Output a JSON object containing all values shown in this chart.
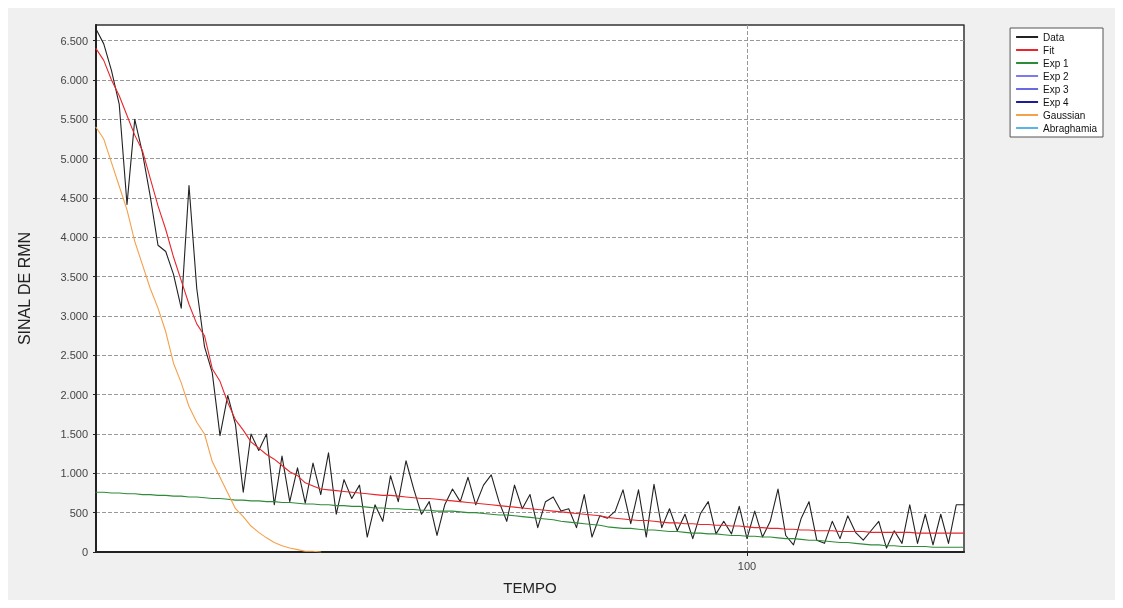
{
  "chart_data": {
    "type": "line",
    "xlabel": "TEMPO",
    "ylabel": "SINAL DE RMN",
    "categories": [
      null,
      null,
      null,
      null,
      null,
      null,
      null,
      null,
      null,
      null,
      null,
      null,
      null,
      null,
      null,
      null,
      null,
      null,
      null,
      null,
      null,
      null,
      null,
      null,
      null,
      null,
      null,
      null,
      null,
      null,
      null,
      null,
      null,
      null,
      null,
      null,
      null,
      null,
      null,
      null,
      null,
      null,
      null,
      null,
      null,
      null,
      null,
      null,
      null,
      null,
      null,
      null,
      null,
      null,
      null,
      null,
      null,
      null,
      null,
      null,
      null,
      null,
      null,
      null,
      null,
      null,
      null,
      null,
      null,
      null,
      null,
      null,
      null,
      null,
      null,
      null,
      null,
      null,
      null,
      null,
      null,
      null,
      null,
      null,
      "100",
      null,
      null,
      null,
      null,
      null,
      null,
      null,
      null,
      null,
      null,
      null,
      null,
      null,
      null,
      null,
      null,
      null,
      null,
      null,
      null,
      null,
      null,
      null,
      null,
      null,
      null,
      null,
      null
    ],
    "series": [
      {
        "name": "Data",
        "color": "#222222",
        "values": [
          6650,
          6460,
          6120,
          5690,
          4420,
          5500,
          5070,
          4520,
          3900,
          3820,
          3530,
          3100,
          4660,
          3350,
          2610,
          2280,
          1480,
          1990,
          1620,
          760,
          1500,
          1290,
          1500,
          600,
          1220,
          640,
          1070,
          620,
          1130,
          730,
          1260,
          480,
          920,
          680,
          850,
          190,
          600,
          390,
          970,
          640,
          1160,
          800,
          480,
          640,
          210,
          600,
          800,
          640,
          950,
          600,
          850,
          980,
          640,
          390,
          850,
          550,
          730,
          310,
          640,
          700,
          520,
          550,
          310,
          730,
          190,
          460,
          430,
          520,
          790,
          360,
          790,
          190,
          860,
          310,
          550,
          270,
          480,
          170,
          490,
          640,
          230,
          390,
          230,
          580,
          170,
          520,
          190,
          390,
          800,
          210,
          90,
          430,
          640,
          150,
          110,
          390,
          170,
          460,
          250,
          150,
          270,
          390,
          50,
          270,
          110,
          600,
          110,
          480,
          90,
          480,
          110,
          600,
          600
        ]
      },
      {
        "name": "Fit",
        "color": "#e8262b",
        "values": [
          6400,
          6250,
          6000,
          5800,
          5550,
          5300,
          5100,
          4750,
          4400,
          4100,
          3750,
          3450,
          3150,
          2900,
          2750,
          2330,
          2170,
          1900,
          1680,
          1550,
          1400,
          1320,
          1240,
          1180,
          1100,
          1020,
          970,
          880,
          840,
          800,
          790,
          780,
          770,
          760,
          750,
          740,
          730,
          720,
          720,
          710,
          700,
          690,
          680,
          680,
          670,
          660,
          650,
          640,
          630,
          620,
          610,
          600,
          590,
          580,
          570,
          560,
          550,
          540,
          530,
          520,
          510,
          500,
          490,
          480,
          470,
          460,
          440,
          430,
          420,
          410,
          400,
          400,
          390,
          380,
          370,
          370,
          360,
          360,
          350,
          350,
          340,
          340,
          330,
          330,
          320,
          310,
          310,
          300,
          300,
          290,
          290,
          280,
          280,
          270,
          270,
          270,
          260,
          260,
          260,
          260,
          250,
          250,
          250,
          250,
          250,
          250,
          240,
          240,
          240,
          240,
          240,
          240,
          240
        ]
      },
      {
        "name": "Exp 1",
        "color": "#2e8b3a",
        "values": [
          760,
          760,
          750,
          750,
          740,
          740,
          730,
          730,
          720,
          720,
          710,
          710,
          700,
          700,
          690,
          680,
          680,
          670,
          660,
          660,
          650,
          650,
          640,
          640,
          630,
          630,
          620,
          610,
          610,
          600,
          600,
          590,
          590,
          580,
          580,
          570,
          560,
          560,
          550,
          550,
          540,
          540,
          530,
          530,
          520,
          520,
          520,
          510,
          500,
          500,
          490,
          480,
          470,
          470,
          460,
          450,
          440,
          430,
          420,
          410,
          390,
          380,
          370,
          360,
          350,
          340,
          320,
          310,
          300,
          300,
          290,
          280,
          280,
          270,
          260,
          260,
          250,
          240,
          240,
          230,
          230,
          220,
          210,
          210,
          200,
          200,
          190,
          190,
          180,
          170,
          170,
          160,
          150,
          150,
          140,
          130,
          120,
          120,
          110,
          100,
          90,
          90,
          80,
          80,
          70,
          70,
          70,
          70,
          60,
          60,
          60,
          60,
          60
        ]
      },
      {
        "name": "Exp 2",
        "color": "#7b7bef",
        "values": [
          null,
          null,
          null,
          null,
          null,
          null,
          null,
          null,
          null,
          null,
          null,
          null,
          null,
          null,
          null,
          null,
          null,
          null,
          null,
          null,
          null,
          null,
          null,
          null,
          null,
          null,
          null,
          null,
          null,
          null,
          null,
          null,
          null,
          null,
          null,
          null,
          null,
          null,
          null,
          null,
          null,
          null,
          null,
          null,
          null,
          null,
          null,
          null,
          null,
          null,
          null,
          null,
          null,
          null,
          null,
          null,
          null,
          null,
          null,
          null,
          null,
          null,
          null,
          null,
          null,
          null,
          null,
          null,
          null,
          null,
          null,
          null,
          null,
          null,
          null,
          null,
          null,
          null,
          null,
          null,
          null,
          null,
          null,
          null,
          null,
          null,
          null,
          null,
          null,
          null,
          null,
          null,
          null,
          null,
          null,
          null,
          null,
          null,
          null,
          null,
          null,
          null,
          null,
          null,
          null,
          null,
          null,
          null,
          null,
          null,
          null,
          null,
          null
        ]
      },
      {
        "name": "Exp 3",
        "color": "#6a6ae0",
        "values": [
          null,
          null,
          null,
          null,
          null,
          null,
          null,
          null,
          null,
          null,
          null,
          null,
          null,
          null,
          null,
          null,
          null,
          null,
          null,
          null,
          null,
          null,
          null,
          null,
          null,
          null,
          null,
          null,
          null,
          null,
          null,
          null,
          null,
          null,
          null,
          null,
          null,
          null,
          null,
          null,
          null,
          null,
          null,
          null,
          null,
          null,
          null,
          null,
          null,
          null,
          null,
          null,
          null,
          null,
          null,
          null,
          null,
          null,
          null,
          null,
          null,
          null,
          null,
          null,
          null,
          null,
          null,
          null,
          null,
          null,
          null,
          null,
          null,
          null,
          null,
          null,
          null,
          null,
          null,
          null,
          null,
          null,
          null,
          null,
          null,
          null,
          null,
          null,
          null,
          null,
          null,
          null,
          null,
          null,
          null,
          null,
          null,
          null,
          null,
          null,
          null,
          null,
          null,
          null,
          null,
          null,
          null,
          null,
          null,
          null,
          null,
          null,
          null
        ]
      },
      {
        "name": "Exp 4",
        "color": "#1c1c9e",
        "values": [
          null,
          null,
          null,
          null,
          null,
          null,
          null,
          null,
          null,
          null,
          null,
          null,
          null,
          null,
          null,
          null,
          null,
          null,
          null,
          null,
          null,
          null,
          null,
          null,
          null,
          null,
          null,
          null,
          null,
          null,
          null,
          null,
          null,
          null,
          null,
          null,
          null,
          null,
          null,
          null,
          null,
          null,
          null,
          null,
          null,
          null,
          null,
          null,
          null,
          null,
          null,
          null,
          null,
          null,
          null,
          null,
          null,
          null,
          null,
          null,
          null,
          null,
          null,
          null,
          null,
          null,
          null,
          null,
          null,
          null,
          null,
          null,
          null,
          null,
          null,
          null,
          null,
          null,
          null,
          null,
          null,
          null,
          null,
          null,
          null,
          null,
          null,
          null,
          null,
          null,
          null,
          null,
          null,
          null,
          null,
          null,
          null,
          null,
          null,
          null,
          null,
          null,
          null,
          null,
          null,
          null,
          null,
          null,
          null,
          null,
          null,
          null,
          null
        ]
      },
      {
        "name": "Gaussian",
        "color": "#f5a04a",
        "values": [
          5400,
          5250,
          4950,
          4650,
          4350,
          3950,
          3650,
          3350,
          3100,
          2800,
          2400,
          2150,
          1850,
          1650,
          1500,
          1150,
          950,
          750,
          550,
          450,
          330,
          250,
          180,
          120,
          80,
          50,
          30,
          10,
          10,
          0,
          null,
          null,
          null,
          null,
          null,
          null,
          null,
          null,
          null,
          null,
          null,
          null,
          null,
          null,
          null,
          null,
          null,
          null,
          null,
          null,
          null,
          null,
          null,
          null,
          null,
          null,
          null,
          null,
          null,
          null,
          null,
          null,
          null,
          null,
          null,
          null,
          null,
          null,
          null,
          null,
          null,
          null,
          null,
          null,
          null,
          null,
          null,
          null,
          null,
          null,
          null,
          null,
          null,
          null,
          null,
          null,
          null,
          null,
          null,
          null,
          null,
          null,
          null,
          null,
          null,
          null,
          null,
          null,
          null,
          null,
          null,
          null,
          null,
          null,
          null,
          null,
          null,
          null,
          null,
          null,
          null,
          null,
          null
        ]
      },
      {
        "name": "Abraghamia",
        "color": "#5ab4e6",
        "values": [
          null,
          null,
          null,
          null,
          null,
          null,
          null,
          null,
          null,
          null,
          null,
          null,
          null,
          null,
          null,
          null,
          null,
          null,
          null,
          null,
          null,
          null,
          null,
          null,
          null,
          null,
          null,
          null,
          null,
          null,
          null,
          null,
          null,
          null,
          null,
          null,
          null,
          null,
          null,
          null,
          null,
          null,
          null,
          null,
          null,
          null,
          null,
          null,
          null,
          null,
          null,
          null,
          null,
          null,
          null,
          null,
          null,
          null,
          null,
          null,
          null,
          null,
          null,
          null,
          null,
          null,
          null,
          null,
          null,
          null,
          null,
          null,
          null,
          null,
          null,
          null,
          null,
          null,
          null,
          null,
          null,
          null,
          null,
          null,
          null,
          null,
          null,
          null,
          null,
          null,
          null,
          null,
          null,
          null,
          null,
          null,
          null,
          null,
          null,
          null,
          null,
          null,
          null,
          null,
          null,
          null,
          null,
          null,
          null,
          null,
          null,
          null,
          null
        ]
      }
    ],
    "ylim": [
      0,
      6700
    ],
    "yticks": [
      {
        "value": 0,
        "label": "0"
      },
      {
        "value": 500,
        "label": "500"
      },
      {
        "value": 1000,
        "label": "1.000"
      },
      {
        "value": 1500,
        "label": "1.500"
      },
      {
        "value": 2000,
        "label": "2.000"
      },
      {
        "value": 2500,
        "label": "2.500"
      },
      {
        "value": 3000,
        "label": "3.000"
      },
      {
        "value": 3500,
        "label": "3.500"
      },
      {
        "value": 4000,
        "label": "4.000"
      },
      {
        "value": 4500,
        "label": "4.500"
      },
      {
        "value": 5000,
        "label": "5.000"
      },
      {
        "value": 5500,
        "label": "5.500"
      },
      {
        "value": 6000,
        "label": "6.000"
      },
      {
        "value": 6500,
        "label": "6.500"
      }
    ],
    "grid": true,
    "legend": "top right",
    "marker": "none",
    "line_style": "solid"
  }
}
